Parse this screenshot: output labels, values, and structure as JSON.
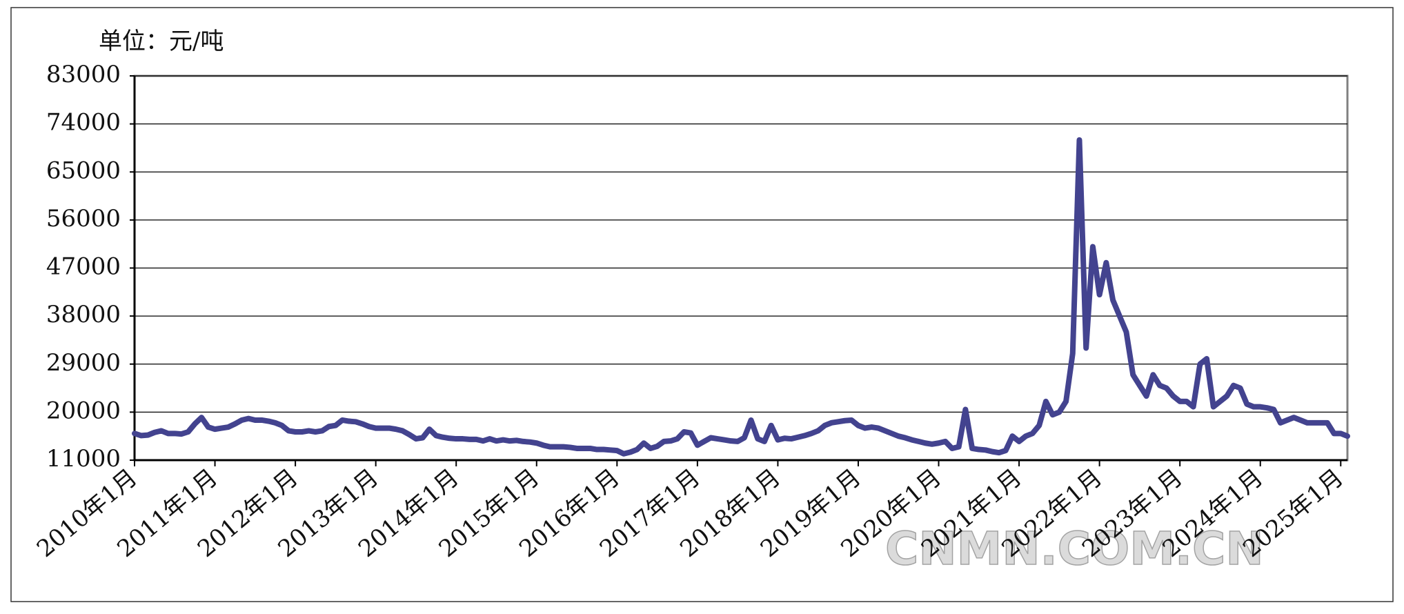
{
  "chart_data": {
    "type": "line",
    "y_label": "单位：元/吨",
    "watermark": "CNMN.COM.CN",
    "color": "#43438f",
    "grid": true,
    "ylim": [
      11000,
      83000
    ],
    "yticks": [
      11000,
      20000,
      29000,
      38000,
      47000,
      56000,
      65000,
      74000,
      83000
    ],
    "categories": [
      "2010年1月",
      null,
      null,
      null,
      null,
      null,
      null,
      null,
      null,
      null,
      null,
      null,
      "2011年1月",
      null,
      null,
      null,
      null,
      null,
      null,
      null,
      null,
      null,
      null,
      null,
      "2012年1月",
      null,
      null,
      null,
      null,
      null,
      null,
      null,
      null,
      null,
      null,
      null,
      "2013年1月",
      null,
      null,
      null,
      null,
      null,
      null,
      null,
      null,
      null,
      null,
      null,
      "2014年1月",
      null,
      null,
      null,
      null,
      null,
      null,
      null,
      null,
      null,
      null,
      null,
      "2015年1月",
      null,
      null,
      null,
      null,
      null,
      null,
      null,
      null,
      null,
      null,
      null,
      "2016年1月",
      null,
      null,
      null,
      null,
      null,
      null,
      null,
      null,
      null,
      null,
      null,
      "2017年1月",
      null,
      null,
      null,
      null,
      null,
      null,
      null,
      null,
      null,
      null,
      null,
      "2018年1月",
      null,
      null,
      null,
      null,
      null,
      null,
      null,
      null,
      null,
      null,
      null,
      "2019年1月",
      null,
      null,
      null,
      null,
      null,
      null,
      null,
      null,
      null,
      null,
      null,
      "2020年1月",
      null,
      null,
      null,
      null,
      null,
      null,
      null,
      null,
      null,
      null,
      null,
      "2021年1月",
      null,
      null,
      null,
      null,
      null,
      null,
      null,
      null,
      null,
      null,
      null,
      "2022年1月",
      null,
      null,
      null,
      null,
      null,
      null,
      null,
      null,
      null,
      null,
      null,
      "2023年1月",
      null,
      null,
      null,
      null,
      null,
      null,
      null,
      null,
      null,
      null,
      null,
      "2024年1月",
      null,
      null,
      null,
      null,
      null,
      null,
      null,
      null,
      null,
      null,
      null,
      "2025年1月",
      null
    ],
    "values": [
      16000,
      15600,
      15700,
      16200,
      16500,
      16000,
      16000,
      15900,
      16300,
      17800,
      19000,
      17200,
      16800,
      17000,
      17200,
      17800,
      18500,
      18800,
      18500,
      18500,
      18300,
      18000,
      17500,
      16500,
      16300,
      16300,
      16500,
      16300,
      16500,
      17300,
      17500,
      18500,
      18300,
      18200,
      17800,
      17300,
      17000,
      17000,
      17000,
      16800,
      16500,
      15800,
      15000,
      15200,
      16800,
      15600,
      15300,
      15100,
      15000,
      15000,
      14900,
      14900,
      14600,
      15000,
      14600,
      14800,
      14600,
      14700,
      14500,
      14400,
      14200,
      13800,
      13500,
      13500,
      13500,
      13400,
      13200,
      13200,
      13200,
      13000,
      13000,
      12900,
      12800,
      12200,
      12500,
      13000,
      14200,
      13200,
      13600,
      14500,
      14600,
      15000,
      16300,
      16100,
      13800,
      14500,
      15200,
      15000,
      14800,
      14600,
      14500,
      15200,
      18500,
      15000,
      14500,
      17500,
      14800,
      15100,
      15000,
      15300,
      15600,
      16000,
      16500,
      17500,
      18000,
      18200,
      18400,
      18500,
      17500,
      17000,
      17200,
      17000,
      16500,
      16000,
      15500,
      15200,
      14800,
      14500,
      14200,
      14000,
      14200,
      14500,
      13200,
      13500,
      20500,
      13200,
      13000,
      12900,
      12600,
      12400,
      12800,
      15500,
      14500,
      15500,
      16000,
      17500,
      22000,
      19500,
      20000,
      22000,
      31000,
      71000,
      32000,
      51000,
      42000,
      48000,
      41000,
      38000,
      35000,
      27000,
      25000,
      23000,
      27000,
      25000,
      24500,
      23000,
      22000,
      22000,
      21000,
      29000,
      30000,
      21000,
      22000,
      23000,
      25000,
      24500,
      21500,
      21000,
      21000,
      20800,
      20500,
      18000,
      18500,
      19000,
      18500,
      18000,
      18000,
      18000,
      18000,
      16000,
      16000,
      15500
    ]
  }
}
